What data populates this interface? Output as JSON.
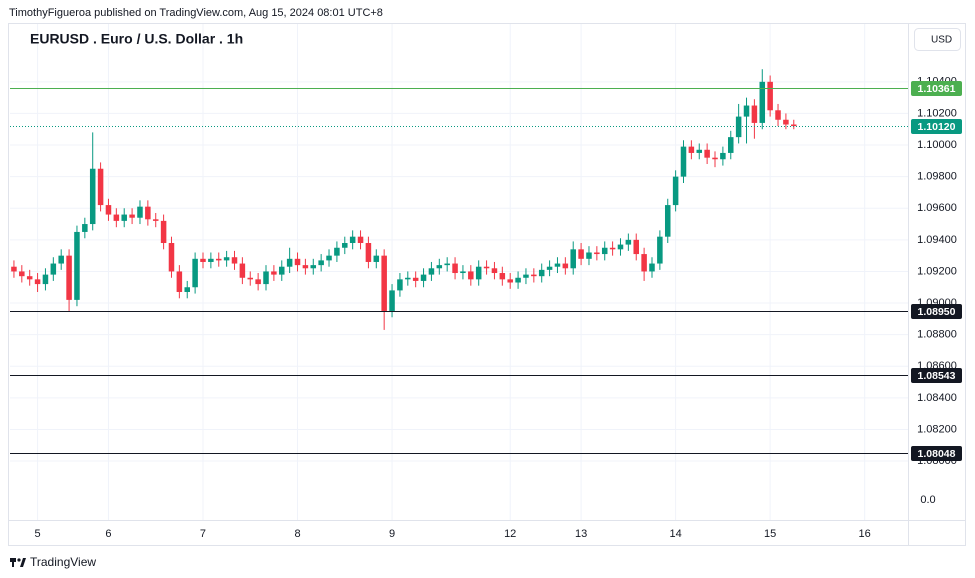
{
  "publisher_line": "TimothyFigueroa published on TradingView.com, Aug 15, 2024 08:01 UTC+8",
  "brand": "TradingView",
  "chart_data": {
    "type": "candlestick",
    "title": "EURUSD . Euro / U.S. Dollar . 1h",
    "currency": "USD",
    "scale_label": "0.0",
    "up_color": "#089981",
    "down_color": "#f23645",
    "grid": true,
    "categories": [
      null,
      null,
      null,
      "5",
      null,
      null,
      null,
      null,
      null,
      null,
      null,
      null,
      "6",
      null,
      null,
      null,
      null,
      null,
      null,
      null,
      null,
      null,
      null,
      null,
      "7",
      null,
      null,
      null,
      null,
      null,
      null,
      null,
      null,
      null,
      null,
      null,
      "8",
      null,
      null,
      null,
      null,
      null,
      null,
      null,
      null,
      null,
      null,
      null,
      "9",
      null,
      null,
      null,
      null,
      null,
      null,
      null,
      null,
      null,
      null,
      null,
      null,
      null,
      null,
      "12",
      null,
      null,
      null,
      null,
      null,
      null,
      null,
      null,
      "13",
      null,
      null,
      null,
      null,
      null,
      null,
      null,
      null,
      null,
      null,
      null,
      "14",
      null,
      null,
      null,
      null,
      null,
      null,
      null,
      null,
      null,
      null,
      null,
      "15",
      null,
      null,
      null,
      null,
      null,
      null,
      null,
      null,
      null,
      null,
      null,
      "16",
      null,
      null,
      null,
      null,
      null
    ],
    "open": [
      1.0923,
      1.092,
      1.0917,
      1.0915,
      1.0912,
      1.0918,
      1.0925,
      1.093,
      1.0902,
      1.0945,
      1.095,
      1.0985,
      1.0962,
      1.0956,
      1.0952,
      1.0956,
      1.0954,
      1.0961,
      1.0953,
      1.0952,
      1.0938,
      1.092,
      1.0907,
      1.091,
      1.0928,
      1.0926,
      1.0928,
      1.0927,
      1.0929,
      1.0925,
      1.0916,
      1.0915,
      1.0912,
      1.092,
      1.0918,
      1.0923,
      1.0928,
      1.0924,
      1.0922,
      1.0924,
      1.0927,
      1.093,
      1.0935,
      1.0938,
      1.0942,
      1.0938,
      1.0926,
      1.093,
      1.0895,
      1.0908,
      1.0915,
      1.0916,
      1.0914,
      1.0918,
      1.0922,
      1.0924,
      1.0925,
      1.0919,
      1.092,
      1.0915,
      1.0923,
      1.0922,
      1.0919,
      1.0915,
      1.0913,
      1.0916,
      1.0918,
      1.0917,
      1.0921,
      1.0923,
      1.0925,
      1.0922,
      1.0934,
      1.0928,
      1.0932,
      1.0931,
      1.0935,
      1.0934,
      1.0937,
      1.094,
      1.0931,
      1.092,
      1.0925,
      1.0942,
      1.0962,
      1.098,
      1.0999,
      1.0995,
      1.0997,
      1.0992,
      1.0991,
      1.0995,
      1.1005,
      1.1018,
      1.1025,
      1.1014,
      1.104,
      1.1022,
      1.1016,
      1.1013,
      null,
      null,
      null,
      null,
      null,
      null,
      null,
      null,
      null,
      null,
      null,
      null,
      null,
      null
    ],
    "high": [
      1.0927,
      1.0924,
      1.0921,
      1.0919,
      1.0922,
      1.0929,
      1.0934,
      1.0934,
      1.0949,
      1.0954,
      1.1008,
      1.0989,
      1.0966,
      1.096,
      1.096,
      1.096,
      1.0965,
      1.0965,
      1.0957,
      1.0956,
      1.0942,
      1.0924,
      1.0914,
      1.0932,
      1.0932,
      1.0932,
      1.0932,
      1.0933,
      1.0933,
      1.0929,
      1.092,
      1.0919,
      1.0924,
      1.0924,
      1.0927,
      1.0935,
      1.0932,
      1.0928,
      1.0928,
      1.0931,
      1.0934,
      1.0939,
      1.0942,
      1.0946,
      1.0946,
      1.0942,
      1.0934,
      1.0934,
      1.0912,
      1.0919,
      1.092,
      1.092,
      1.0922,
      1.0926,
      1.0928,
      1.0929,
      1.0929,
      1.0924,
      1.0924,
      1.0927,
      1.0927,
      1.0926,
      1.0923,
      1.0919,
      1.092,
      1.0922,
      1.0922,
      1.0925,
      1.0927,
      1.0929,
      1.0929,
      1.0939,
      1.0938,
      1.0936,
      1.0936,
      1.0939,
      1.0939,
      1.0941,
      1.0944,
      1.0944,
      1.0935,
      1.0929,
      1.0946,
      1.0966,
      1.0984,
      1.1003,
      1.1003,
      1.1001,
      1.1001,
      1.0996,
      1.0999,
      1.1009,
      1.1026,
      1.103,
      1.1029,
      1.1048,
      1.1044,
      1.1026,
      1.102,
      1.1016,
      null,
      null,
      null,
      null,
      null,
      null,
      null,
      null,
      null,
      null,
      null,
      null,
      null,
      null
    ],
    "low": [
      1.0916,
      1.0913,
      1.0911,
      1.0907,
      1.0908,
      1.0914,
      1.0921,
      1.0895,
      1.0898,
      1.0941,
      1.0946,
      1.0958,
      1.0952,
      1.0948,
      1.0948,
      1.095,
      1.095,
      1.0949,
      1.0948,
      1.0934,
      1.0916,
      1.0903,
      1.0903,
      1.0906,
      1.0922,
      1.0922,
      1.0923,
      1.0923,
      1.0921,
      1.0912,
      1.0911,
      1.0908,
      1.0908,
      1.0914,
      1.0914,
      1.0919,
      1.092,
      1.0918,
      1.0918,
      1.092,
      1.0923,
      1.0926,
      1.0931,
      1.0934,
      1.0934,
      1.0922,
      1.0922,
      1.0883,
      1.0891,
      1.0904,
      1.0911,
      1.091,
      1.091,
      1.0914,
      1.0918,
      1.092,
      1.0915,
      1.0915,
      1.0911,
      1.0911,
      1.0918,
      1.0915,
      1.0911,
      1.0909,
      1.0909,
      1.0912,
      1.0913,
      1.0913,
      1.0917,
      1.0919,
      1.0918,
      1.0918,
      1.0924,
      1.0924,
      1.0927,
      1.0927,
      1.093,
      1.093,
      1.0933,
      1.0927,
      1.0914,
      1.0916,
      1.0921,
      1.0938,
      1.0958,
      1.0976,
      1.0991,
      1.0991,
      1.0988,
      1.0986,
      1.0987,
      1.0991,
      1.1001,
      1.1001,
      1.1004,
      1.101,
      1.1018,
      1.1012,
      1.101,
      1.101,
      null,
      null,
      null,
      null,
      null,
      null,
      null,
      null,
      null,
      null,
      null,
      null,
      null,
      null
    ],
    "close": [
      1.092,
      1.0917,
      1.0915,
      1.0912,
      1.0918,
      1.0925,
      1.093,
      1.0902,
      1.0945,
      1.095,
      1.0985,
      1.0962,
      1.0956,
      1.0952,
      1.0956,
      1.0954,
      1.0961,
      1.0953,
      1.0952,
      1.0938,
      1.092,
      1.0907,
      1.091,
      1.0928,
      1.0926,
      1.0928,
      1.0927,
      1.0929,
      1.0925,
      1.0916,
      1.0915,
      1.0912,
      1.092,
      1.0918,
      1.0923,
      1.0928,
      1.0924,
      1.0922,
      1.0924,
      1.0927,
      1.093,
      1.0935,
      1.0938,
      1.0942,
      1.0938,
      1.0926,
      1.093,
      1.0895,
      1.0908,
      1.0915,
      1.0916,
      1.0914,
      1.0918,
      1.0922,
      1.0924,
      1.0925,
      1.0919,
      1.092,
      1.0915,
      1.0923,
      1.0922,
      1.0919,
      1.0915,
      1.0913,
      1.0916,
      1.0918,
      1.0917,
      1.0921,
      1.0923,
      1.0925,
      1.0922,
      1.0934,
      1.0928,
      1.0932,
      1.0931,
      1.0935,
      1.0934,
      1.0937,
      1.094,
      1.0931,
      1.092,
      1.0925,
      1.0942,
      1.0962,
      1.098,
      1.0999,
      1.0995,
      1.0997,
      1.0992,
      1.0991,
      1.0995,
      1.1005,
      1.1018,
      1.1025,
      1.1014,
      1.104,
      1.1022,
      1.1016,
      1.1013,
      1.1012,
      null,
      null,
      null,
      null,
      null,
      null,
      null,
      null,
      null,
      null,
      null,
      null,
      null,
      null
    ],
    "ylim": [
      1.07627,
      1.10766
    ],
    "yticks": [
      {
        "value": 1.104,
        "label": "1.10400"
      },
      {
        "value": 1.102,
        "label": "1.10200"
      },
      {
        "value": 1.1,
        "label": "1.10000"
      },
      {
        "value": 1.098,
        "label": "1.09800"
      },
      {
        "value": 1.096,
        "label": "1.09600"
      },
      {
        "value": 1.094,
        "label": "1.09400"
      },
      {
        "value": 1.092,
        "label": "1.09200"
      },
      {
        "value": 1.09,
        "label": "1.09000"
      },
      {
        "value": 1.088,
        "label": "1.08800"
      },
      {
        "value": 1.086,
        "label": "1.08600"
      },
      {
        "value": 1.084,
        "label": "1.08400"
      },
      {
        "value": 1.082,
        "label": "1.08200"
      },
      {
        "value": 1.08,
        "label": "1.08000"
      }
    ],
    "levels": [
      {
        "value": 1.10361,
        "color": "#4caf50",
        "style": "solid"
      },
      {
        "value": 1.1012,
        "label": "1.10120",
        "color": "#089981",
        "style": "dotted"
      },
      {
        "value": 1.0895,
        "label": "1.08950",
        "color": "#131722",
        "style": "solid"
      },
      {
        "value": 1.08543,
        "color": "#131722",
        "style": "solid"
      },
      {
        "value": 1.08048,
        "color": "#131722",
        "style": "solid"
      }
    ]
  }
}
